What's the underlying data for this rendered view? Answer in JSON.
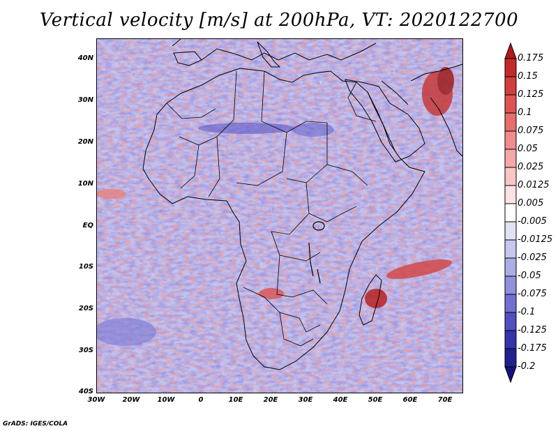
{
  "title": "Vertical velocity [m/s] at 200hPa, VT: 2020122700",
  "footer": "GrADS: IGES/COLA",
  "latitude_labels": [
    "40N",
    "30N",
    "20N",
    "10N",
    "EQ",
    "10S",
    "20S",
    "30S",
    "40S"
  ],
  "longitude_labels": [
    "30W",
    "20W",
    "10W",
    "0",
    "10E",
    "20E",
    "30E",
    "40E",
    "50E",
    "60E",
    "70E"
  ],
  "colorbar": {
    "labels": [
      "0.175",
      "0.15",
      "0.125",
      "0.1",
      "0.075",
      "0.05",
      "0.025",
      "0.0125",
      "0.005",
      "-0.005",
      "-0.0125",
      "-0.025",
      "-0.05",
      "-0.075",
      "-0.1",
      "-0.125",
      "-0.175",
      "-0.2"
    ],
    "colors": [
      "#b41818",
      "#c52a2a",
      "#d23d3d",
      "#de5454",
      "#e86e6e",
      "#f08c8c",
      "#f5a8a8",
      "#f9c6c6",
      "#fde2e2",
      "#ffffff",
      "#e2e2f6",
      "#c8c8ee",
      "#adade6",
      "#9090dc",
      "#7070d0",
      "#5050c0",
      "#3434ac",
      "#20208e",
      "#141478"
    ]
  }
}
